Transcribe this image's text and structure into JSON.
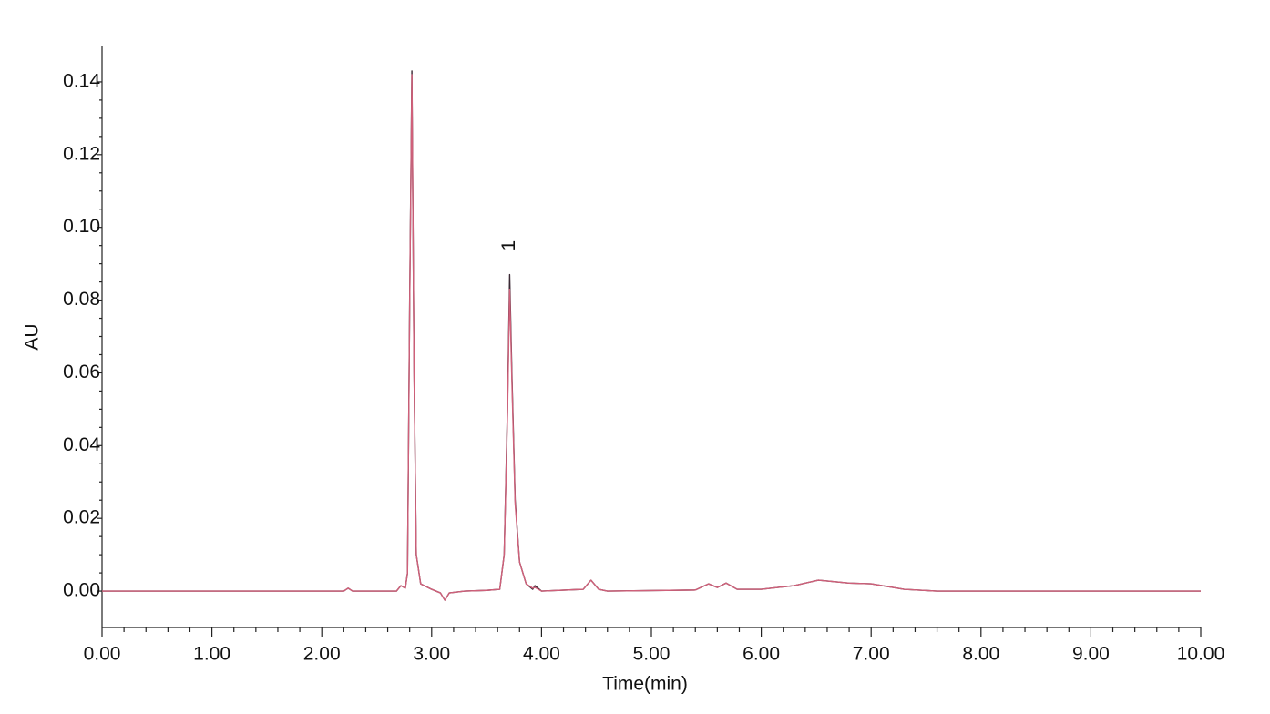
{
  "chart_data": {
    "type": "line",
    "x_label": "Time(min)",
    "y_label": "AU",
    "xlim": [
      0,
      10
    ],
    "ylim": [
      -0.01,
      0.15
    ],
    "xticks": [
      {
        "value": 0,
        "label": "0.00"
      },
      {
        "value": 1,
        "label": "1.00"
      },
      {
        "value": 2,
        "label": "2.00"
      },
      {
        "value": 3,
        "label": "3.00"
      },
      {
        "value": 4,
        "label": "4.00"
      },
      {
        "value": 5,
        "label": "5.00"
      },
      {
        "value": 6,
        "label": "6.00"
      },
      {
        "value": 7,
        "label": "7.00"
      },
      {
        "value": 8,
        "label": "8.00"
      },
      {
        "value": 9,
        "label": "9.00"
      },
      {
        "value": 10,
        "label": "10.00"
      }
    ],
    "yticks": [
      {
        "value": 0,
        "label": "0.00"
      },
      {
        "value": 0.02,
        "label": "0.02"
      },
      {
        "value": 0.04,
        "label": "0.04"
      },
      {
        "value": 0.06,
        "label": "0.06"
      },
      {
        "value": 0.08,
        "label": "0.08"
      },
      {
        "value": 0.1,
        "label": "0.10"
      },
      {
        "value": 0.12,
        "label": "0.12"
      },
      {
        "value": 0.14,
        "label": "0.14"
      }
    ],
    "x": [
      0,
      2.2,
      2.24,
      2.28,
      2.68,
      2.72,
      2.76,
      2.78,
      2.8,
      2.82,
      2.84,
      2.86,
      2.9,
      3.0,
      3.08,
      3.12,
      3.16,
      3.3,
      3.5,
      3.62,
      3.66,
      3.69,
      3.71,
      3.73,
      3.76,
      3.8,
      3.86,
      3.92,
      3.94,
      4.0,
      4.38,
      4.45,
      4.52,
      4.6,
      5.4,
      5.52,
      5.6,
      5.68,
      5.78,
      6.0,
      6.3,
      6.52,
      6.8,
      7.0,
      7.3,
      7.6,
      10.0
    ],
    "series": [
      {
        "color": "#3b2a35",
        "values": [
          0,
          0,
          0.0008,
          0,
          0,
          0.0015,
          0.0008,
          0.005,
          0.08,
          0.143,
          0.06,
          0.01,
          0.002,
          0.0005,
          -0.0005,
          -0.0025,
          -0.0005,
          0,
          0.0002,
          0.0005,
          0.01,
          0.05,
          0.087,
          0.06,
          0.025,
          0.008,
          0.002,
          0.0005,
          0.0015,
          0,
          0.0005,
          0.003,
          0.0005,
          0,
          0.0003,
          0.002,
          0.001,
          0.0022,
          0.0005,
          0.0005,
          0.0015,
          0.003,
          0.0022,
          0.002,
          0.0005,
          0,
          0
        ]
      },
      {
        "color": "#d0607a",
        "values": [
          0,
          0,
          0.0008,
          0,
          0,
          0.0015,
          0.0008,
          0.005,
          0.079,
          0.142,
          0.059,
          0.01,
          0.002,
          0.0005,
          -0.0005,
          -0.0025,
          -0.0005,
          0,
          0.0002,
          0.0005,
          0.01,
          0.048,
          0.083,
          0.058,
          0.024,
          0.008,
          0.002,
          0.0008,
          0.001,
          0,
          0.0005,
          0.003,
          0.0005,
          0,
          0.0003,
          0.002,
          0.001,
          0.0022,
          0.0005,
          0.0005,
          0.0015,
          0.003,
          0.0022,
          0.002,
          0.0005,
          0,
          0
        ]
      }
    ],
    "annotations": [
      {
        "text": "1",
        "x": 3.71,
        "y": 0.087
      }
    ]
  }
}
